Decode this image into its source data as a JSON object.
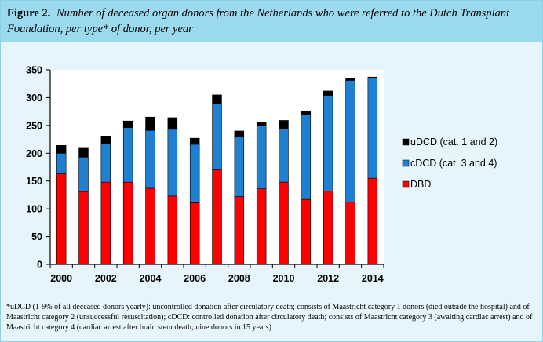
{
  "figure": {
    "label": "Figure 2.",
    "caption": "Number of deceased organ donors from the Netherlands who were referred to the Dutch Transplant Foundation, per type* of donor, per year"
  },
  "footnote": "*uDCD (1-9% of all deceased donors yearly): uncontrolled donation after circulatory death; consists of Maastricht category 1 donors (died outside the hospital) and of Maastricht category 2 (unsuccessful resuscitation); cDCD: controlled donation after circulatory death; consists of Maastricht category 3 (awaiting cardiac arrest) and of Maastricht category 4 (cardiac arrest after brain stem death; nine donors in 15 years)",
  "chart_data": {
    "type": "bar",
    "stacked": true,
    "title": "",
    "xlabel": "",
    "ylabel": "",
    "categories": [
      "2000",
      "2001",
      "2002",
      "2003",
      "2004",
      "2005",
      "2006",
      "2007",
      "2008",
      "2009",
      "2010",
      "2011",
      "2012",
      "2013",
      "2014"
    ],
    "x_tick_labels": [
      "2000",
      "2002",
      "2004",
      "2006",
      "2008",
      "2010",
      "2012",
      "2014"
    ],
    "ylim": [
      0,
      350
    ],
    "y_ticks": [
      0,
      50,
      100,
      150,
      200,
      250,
      300,
      350
    ],
    "grid": false,
    "legend_position": "right",
    "series": [
      {
        "name": "DBD",
        "color": "#ff0000",
        "values": [
          163,
          131,
          148,
          148,
          137,
          123,
          111,
          170,
          122,
          136,
          148,
          117,
          132,
          112,
          155
        ]
      },
      {
        "name": "cDCD (cat. 3 and 4)",
        "color": "#1f7fd0",
        "values": [
          37,
          62,
          69,
          98,
          104,
          120,
          105,
          119,
          107,
          114,
          96,
          153,
          172,
          219,
          180
        ]
      },
      {
        "name": "uDCD (cat. 1 and 2)",
        "color": "#000000",
        "values": [
          14,
          16,
          14,
          12,
          24,
          21,
          11,
          16,
          11,
          5,
          15,
          5,
          8,
          4,
          2
        ]
      }
    ],
    "legend_order": [
      "uDCD (cat. 1 and 2)",
      "cDCD (cat. 3 and 4)",
      "DBD"
    ]
  }
}
